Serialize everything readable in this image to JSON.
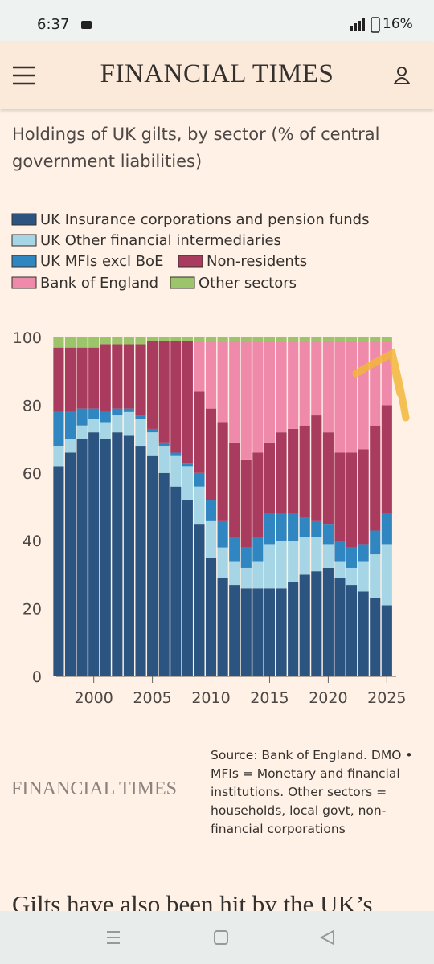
{
  "status_bar": {
    "time": "6:37",
    "battery": "16%"
  },
  "header": {
    "logo": "FINANCIAL TIMES"
  },
  "chart_data": {
    "type": "stacked-bar",
    "title": "Holdings of UK gilts, by sector (% of central government liabilities)",
    "x": [
      1997,
      1998,
      1999,
      2000,
      2001,
      2002,
      2003,
      2004,
      2005,
      2006,
      2007,
      2008,
      2009,
      2010,
      2011,
      2012,
      2013,
      2014,
      2015,
      2016,
      2017,
      2018,
      2019,
      2020,
      2021,
      2022,
      2023,
      2024,
      2025
    ],
    "series": [
      {
        "name": "UK Insurance corporations and pension funds",
        "color": "#2c5480",
        "values": [
          62,
          66,
          70,
          72,
          70,
          72,
          71,
          68,
          65,
          60,
          56,
          52,
          45,
          35,
          29,
          27,
          26,
          26,
          26,
          26,
          28,
          30,
          31,
          32,
          29,
          27,
          25,
          23,
          21
        ]
      },
      {
        "name": "UK Other financial intermediaries",
        "color": "#a6d6e6",
        "values": [
          6,
          4,
          4,
          4,
          5,
          5,
          7,
          8,
          7,
          8,
          9,
          10,
          11,
          11,
          9,
          7,
          6,
          8,
          13,
          14,
          12,
          11,
          10,
          7,
          5,
          5,
          9,
          13,
          18
        ]
      },
      {
        "name": "UK MFIs excl BoE",
        "color": "#2f86c0",
        "values": [
          10,
          8,
          5,
          3,
          3,
          2,
          1,
          1,
          1,
          1,
          1,
          1,
          4,
          6,
          8,
          7,
          6,
          7,
          9,
          8,
          8,
          6,
          5,
          6,
          6,
          6,
          5,
          7,
          9
        ]
      },
      {
        "name": "Non-residents",
        "color": "#a83b5e",
        "values": [
          19,
          19,
          18,
          18,
          20,
          19,
          19,
          21,
          26,
          30,
          33,
          36,
          24,
          27,
          29,
          28,
          26,
          25,
          21,
          24,
          25,
          27,
          31,
          27,
          26,
          28,
          28,
          31,
          32
        ]
      },
      {
        "name": "Bank of England",
        "color": "#f08aab",
        "values": [
          0,
          0,
          0,
          0,
          0,
          0,
          0,
          0,
          0,
          0,
          0,
          0,
          15,
          20,
          24,
          30,
          35,
          33,
          30,
          27,
          26,
          25,
          22,
          27,
          33,
          33,
          32,
          25,
          19
        ]
      },
      {
        "name": "Other sectors",
        "color": "#9cc46a",
        "values": [
          3,
          3,
          3,
          3,
          2,
          2,
          2,
          2,
          1,
          1,
          1,
          1,
          1,
          1,
          1,
          1,
          1,
          1,
          1,
          1,
          1,
          1,
          1,
          1,
          1,
          1,
          1,
          1,
          1
        ]
      }
    ],
    "xlim": [
      1996.8,
      2025.8
    ],
    "xticks": [
      2000,
      2005,
      2010,
      2015,
      2020,
      2025
    ],
    "ylim": [
      0,
      100
    ],
    "yticks": [
      0,
      20,
      40,
      60,
      80,
      100
    ]
  },
  "footer": {
    "logo": "FINANCIAL TIMES",
    "source": "Source: Bank of England. DMO • MFIs = Monetary and financial institutions. Other sectors = households, local govt, non-financial corporations"
  },
  "next_heading": "Gilts have also been hit by the UK’s"
}
